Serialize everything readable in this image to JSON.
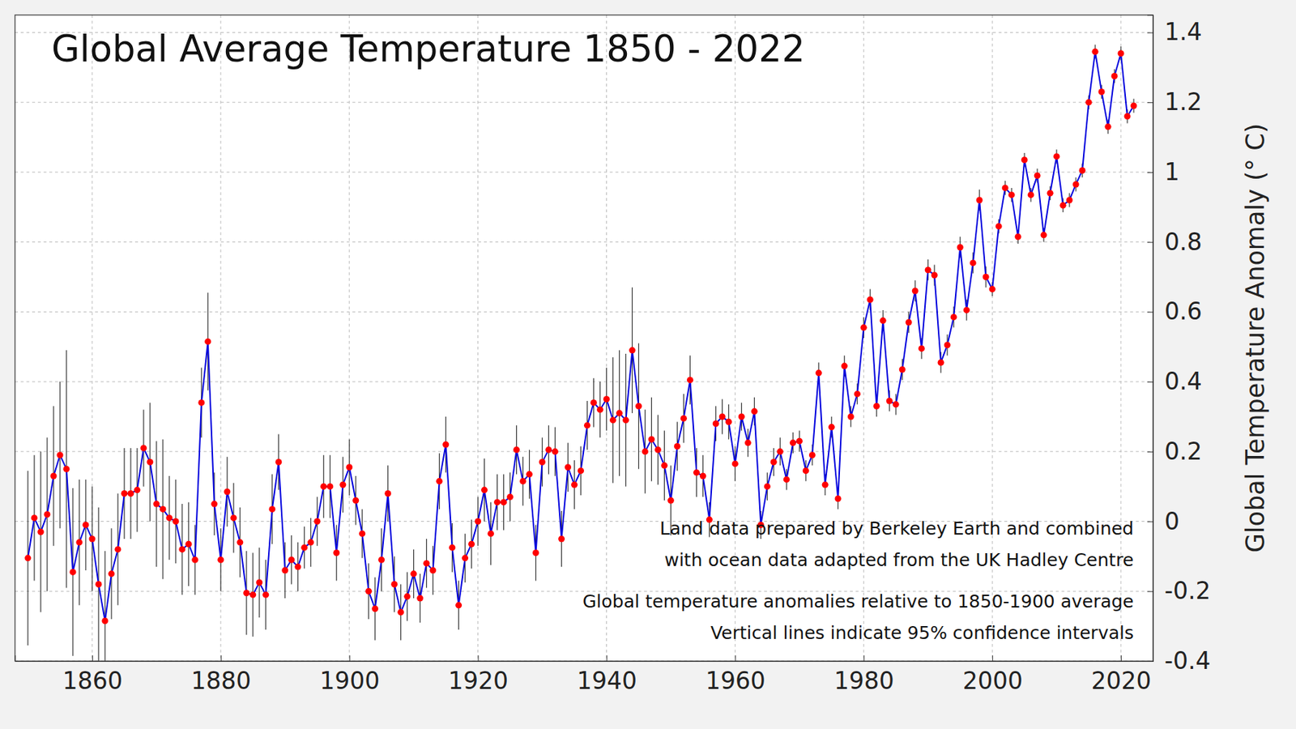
{
  "chart_data": {
    "type": "line",
    "title": "Global Average Temperature 1850 - 2022",
    "y_label": "Global Temperature Anomaly (° C)",
    "annotations": [
      "Land data prepared by Berkeley Earth and combined",
      "with ocean data adapted from the UK Hadley Centre",
      "Global temperature anomalies relative to 1850-1900 average",
      "Vertical lines indicate 95% confidence intervals"
    ],
    "x": [
      1850,
      1851,
      1852,
      1853,
      1854,
      1855,
      1856,
      1857,
      1858,
      1859,
      1860,
      1861,
      1862,
      1863,
      1864,
      1865,
      1866,
      1867,
      1868,
      1869,
      1870,
      1871,
      1872,
      1873,
      1874,
      1875,
      1876,
      1877,
      1878,
      1879,
      1880,
      1881,
      1882,
      1883,
      1884,
      1885,
      1886,
      1887,
      1888,
      1889,
      1890,
      1891,
      1892,
      1893,
      1894,
      1895,
      1896,
      1897,
      1898,
      1899,
      1900,
      1901,
      1902,
      1903,
      1904,
      1905,
      1906,
      1907,
      1908,
      1909,
      1910,
      1911,
      1912,
      1913,
      1914,
      1915,
      1916,
      1917,
      1918,
      1919,
      1920,
      1921,
      1922,
      1923,
      1924,
      1925,
      1926,
      1927,
      1928,
      1929,
      1930,
      1931,
      1932,
      1933,
      1934,
      1935,
      1936,
      1937,
      1938,
      1939,
      1940,
      1941,
      1942,
      1943,
      1944,
      1945,
      1946,
      1947,
      1948,
      1949,
      1950,
      1951,
      1952,
      1953,
      1954,
      1955,
      1956,
      1957,
      1958,
      1959,
      1960,
      1961,
      1962,
      1963,
      1964,
      1965,
      1966,
      1967,
      1968,
      1969,
      1970,
      1971,
      1972,
      1973,
      1974,
      1975,
      1976,
      1977,
      1978,
      1979,
      1980,
      1981,
      1982,
      1983,
      1984,
      1985,
      1986,
      1987,
      1988,
      1989,
      1990,
      1991,
      1992,
      1993,
      1994,
      1995,
      1996,
      1997,
      1998,
      1999,
      2000,
      2001,
      2002,
      2003,
      2004,
      2005,
      2006,
      2007,
      2008,
      2009,
      2010,
      2011,
      2012,
      2013,
      2014,
      2015,
      2016,
      2017,
      2018,
      2019,
      2020,
      2021,
      2022
    ],
    "series": [
      {
        "color": "#0000dd",
        "marker": "circle",
        "values": [
          -0.105,
          0.01,
          -0.03,
          0.02,
          0.13,
          0.19,
          0.15,
          -0.145,
          -0.06,
          -0.01,
          -0.05,
          -0.18,
          -0.285,
          -0.15,
          -0.08,
          0.08,
          0.08,
          0.09,
          0.21,
          0.17,
          0.05,
          0.035,
          0.01,
          0.0,
          -0.08,
          -0.065,
          -0.11,
          0.34,
          0.515,
          0.05,
          -0.11,
          0.085,
          0.01,
          -0.06,
          -0.205,
          -0.21,
          -0.175,
          -0.21,
          0.035,
          0.17,
          -0.14,
          -0.11,
          -0.13,
          -0.075,
          -0.06,
          0.0,
          0.1,
          0.1,
          -0.09,
          0.105,
          0.155,
          0.06,
          -0.035,
          -0.2,
          -0.25,
          -0.11,
          0.08,
          -0.18,
          -0.26,
          -0.215,
          -0.15,
          -0.22,
          -0.12,
          -0.14,
          0.115,
          0.22,
          -0.075,
          -0.24,
          -0.105,
          -0.065,
          0.0,
          0.09,
          -0.035,
          0.055,
          0.055,
          0.07,
          0.205,
          0.115,
          0.135,
          -0.09,
          0.17,
          0.205,
          0.2,
          -0.05,
          0.155,
          0.105,
          0.145,
          0.275,
          0.34,
          0.32,
          0.35,
          0.29,
          0.31,
          0.29,
          0.49,
          0.33,
          0.2,
          0.235,
          0.205,
          0.16,
          0.06,
          0.215,
          0.295,
          0.405,
          0.14,
          0.13,
          0.005,
          0.28,
          0.3,
          0.285,
          0.165,
          0.3,
          0.225,
          0.315,
          -0.01,
          0.1,
          0.17,
          0.2,
          0.12,
          0.225,
          0.23,
          0.145,
          0.19,
          0.425,
          0.105,
          0.27,
          0.065,
          0.445,
          0.3,
          0.365,
          0.555,
          0.635,
          0.33,
          0.575,
          0.345,
          0.335,
          0.435,
          0.57,
          0.66,
          0.495,
          0.72,
          0.705,
          0.455,
          0.505,
          0.585,
          0.785,
          0.605,
          0.74,
          0.92,
          0.7,
          0.665,
          0.845,
          0.955,
          0.935,
          0.815,
          1.035,
          0.935,
          0.99,
          0.82,
          0.94,
          1.045,
          0.905,
          0.92,
          0.965,
          1.005,
          1.2,
          1.345,
          1.23,
          1.13,
          1.275,
          1.34,
          1.16,
          1.19
        ],
        "errors": [
          0.25,
          0.18,
          0.23,
          0.22,
          0.2,
          0.21,
          0.34,
          0.24,
          0.18,
          0.13,
          0.15,
          0.22,
          0.2,
          0.13,
          0.16,
          0.13,
          0.13,
          0.12,
          0.11,
          0.17,
          0.18,
          0.2,
          0.12,
          0.12,
          0.13,
          0.12,
          0.1,
          0.1,
          0.14,
          0.09,
          0.09,
          0.1,
          0.1,
          0.1,
          0.12,
          0.12,
          0.1,
          0.1,
          0.1,
          0.08,
          0.08,
          0.07,
          0.07,
          0.06,
          0.07,
          0.07,
          0.09,
          0.09,
          0.08,
          0.08,
          0.08,
          0.07,
          0.07,
          0.08,
          0.09,
          0.09,
          0.08,
          0.08,
          0.08,
          0.07,
          0.07,
          0.07,
          0.07,
          0.07,
          0.08,
          0.08,
          0.07,
          0.07,
          0.07,
          0.07,
          0.07,
          0.09,
          0.09,
          0.08,
          0.08,
          0.07,
          0.07,
          0.07,
          0.07,
          0.08,
          0.07,
          0.07,
          0.07,
          0.08,
          0.07,
          0.07,
          0.07,
          0.07,
          0.07,
          0.08,
          0.09,
          0.18,
          0.18,
          0.19,
          0.18,
          0.18,
          0.12,
          0.12,
          0.1,
          0.1,
          0.1,
          0.07,
          0.07,
          0.07,
          0.07,
          0.06,
          0.05,
          0.05,
          0.05,
          0.05,
          0.05,
          0.04,
          0.04,
          0.04,
          0.04,
          0.04,
          0.04,
          0.04,
          0.03,
          0.03,
          0.03,
          0.03,
          0.03,
          0.03,
          0.03,
          0.03,
          0.03,
          0.03,
          0.03,
          0.03,
          0.03,
          0.03,
          0.03,
          0.03,
          0.03,
          0.03,
          0.03,
          0.03,
          0.03,
          0.03,
          0.03,
          0.03,
          0.03,
          0.03,
          0.03,
          0.03,
          0.03,
          0.03,
          0.03,
          0.03,
          0.02,
          0.02,
          0.02,
          0.02,
          0.02,
          0.02,
          0.02,
          0.02,
          0.02,
          0.02,
          0.02,
          0.02,
          0.02,
          0.02,
          0.02,
          0.02,
          0.02,
          0.02,
          0.02,
          0.02,
          0.02,
          0.02,
          0.02
        ]
      }
    ],
    "xlim": [
      1848,
      2025
    ],
    "ylim": [
      -0.4,
      1.45
    ],
    "xticks": [
      1860,
      1880,
      1900,
      1920,
      1940,
      1960,
      1980,
      2000,
      2020
    ],
    "yticks": [
      -0.4,
      -0.2,
      0,
      0.2,
      0.4,
      0.6,
      0.8,
      1,
      1.2,
      1.4
    ],
    "grid": true
  }
}
